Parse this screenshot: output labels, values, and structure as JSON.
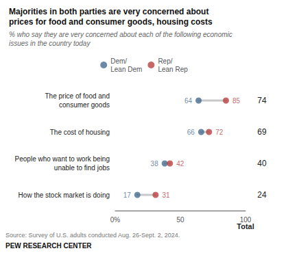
{
  "chart_data": {
    "type": "dumbbell",
    "title": "Majorities in both parties are very concerned about\nprices for food and consumer goods, housing costs",
    "subtitle": "% who say they are very concerned about each of the following economic\nissues in the country today",
    "categories": [
      "The price of food and\nconsumer goods",
      "The cost of housing",
      "People who want to work being\nunable to find jobs",
      "How the stock market is doing"
    ],
    "series": [
      {
        "name": "Dem/\nLean Dem",
        "color": "#476b8f",
        "values": [
          64,
          66,
          38,
          17
        ]
      },
      {
        "name": "Rep/\nLean Rep",
        "color": "#b94040",
        "values": [
          85,
          72,
          42,
          31
        ]
      }
    ],
    "total_label": "Total",
    "total_values": [
      74,
      69,
      40,
      24
    ],
    "xlim": [
      0,
      100
    ],
    "xticks": [
      {
        "value": 0,
        "label": "0%"
      },
      50,
      100
    ],
    "grid": false,
    "legend": "top",
    "data_labels": true,
    "source": "Source: Survey of U.S. adults conducted Aug. 26-Sept. 2, 2024.",
    "credit": "PEW RESEARCH CENTER"
  }
}
